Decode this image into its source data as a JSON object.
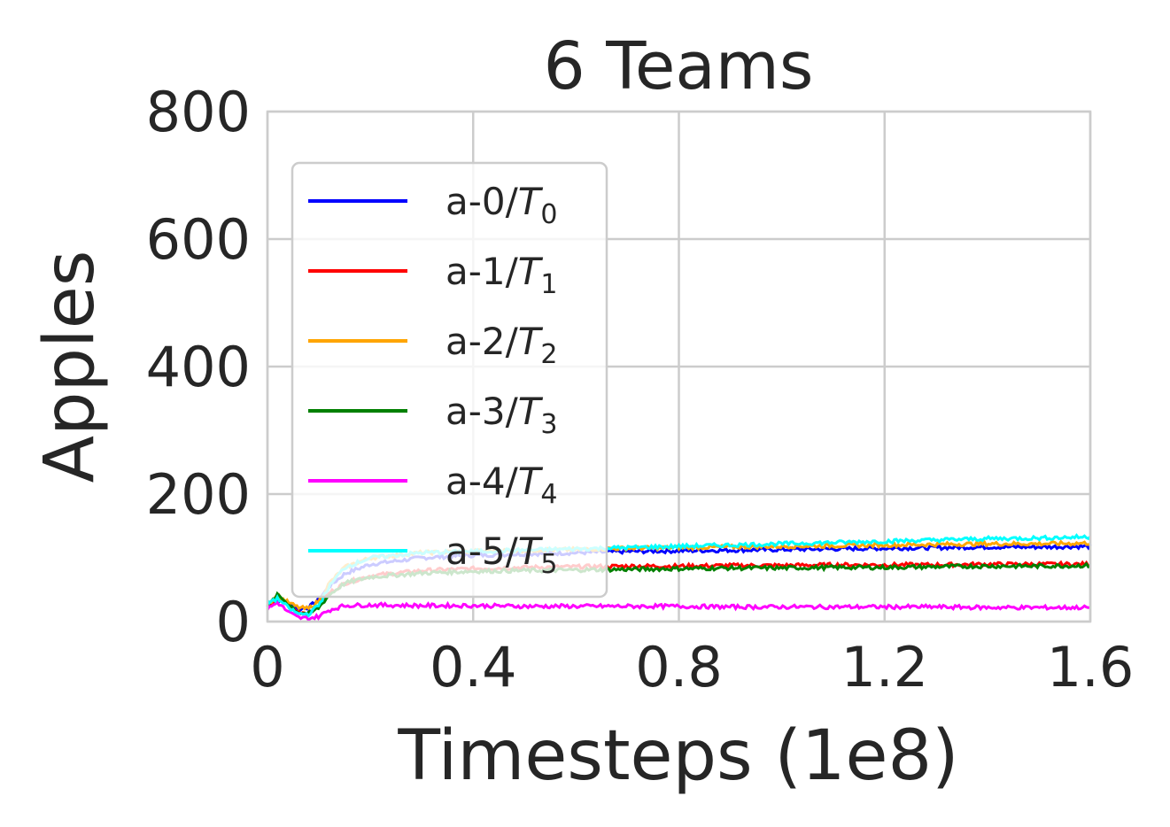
{
  "chart_data": {
    "type": "line",
    "title": "6 Teams",
    "xlabel": "Timesteps (1e8)",
    "ylabel": "Apples",
    "xlim": [
      0,
      1.6
    ],
    "ylim": [
      0,
      800
    ],
    "xticks": [
      {
        "value": 0,
        "label": "0"
      },
      {
        "value": 0.4,
        "label": "0.4"
      },
      {
        "value": 0.8,
        "label": "0.8"
      },
      {
        "value": 1.2,
        "label": "1.2"
      },
      {
        "value": 1.6,
        "label": "1.6"
      }
    ],
    "yticks": [
      {
        "value": 0,
        "label": "0"
      },
      {
        "value": 200,
        "label": "200"
      },
      {
        "value": 400,
        "label": "400"
      },
      {
        "value": 600,
        "label": "600"
      },
      {
        "value": 800,
        "label": "800"
      }
    ],
    "grid": true,
    "legend_position": "upper-left",
    "x": [
      0,
      0.02,
      0.04,
      0.06,
      0.08,
      0.1,
      0.12,
      0.15,
      0.2,
      0.3,
      0.4,
      0.5,
      0.6,
      0.7,
      0.8,
      0.9,
      1.0,
      1.1,
      1.2,
      1.3,
      1.4,
      1.5,
      1.6
    ],
    "series": [
      {
        "label": "a-0/",
        "sub": "0",
        "color": "#0000ff",
        "values": [
          25,
          35,
          28,
          20,
          22,
          35,
          55,
          75,
          90,
          100,
          104,
          106,
          108,
          110,
          111,
          112,
          113,
          114,
          115,
          116,
          117,
          117,
          118
        ]
      },
      {
        "label": "a-1/",
        "sub": "1",
        "color": "#ff0000",
        "values": [
          22,
          38,
          25,
          15,
          14,
          25,
          45,
          60,
          72,
          80,
          83,
          85,
          86,
          87,
          87,
          88,
          88,
          89,
          89,
          89,
          90,
          90,
          90
        ]
      },
      {
        "label": "a-2/",
        "sub": "2",
        "color": "#ffa500",
        "values": [
          28,
          40,
          30,
          22,
          20,
          32,
          60,
          85,
          100,
          108,
          110,
          112,
          113,
          115,
          116,
          117,
          118,
          119,
          120,
          121,
          122,
          122,
          123
        ]
      },
      {
        "label": "a-3/",
        "sub": "3",
        "color": "#008000",
        "values": [
          24,
          42,
          28,
          14,
          12,
          22,
          42,
          60,
          70,
          76,
          79,
          80,
          81,
          82,
          83,
          84,
          84,
          85,
          85,
          86,
          87,
          87,
          88
        ]
      },
      {
        "label": "a-4/",
        "sub": "4",
        "color": "#ff00ff",
        "values": [
          20,
          30,
          15,
          6,
          5,
          8,
          18,
          25,
          26,
          25,
          25,
          24,
          24,
          24,
          24,
          23,
          23,
          23,
          23,
          23,
          22,
          22,
          22
        ]
      },
      {
        "label": "a-5/",
        "sub": "5",
        "color": "#00ffff",
        "values": [
          30,
          36,
          22,
          12,
          12,
          26,
          55,
          85,
          100,
          108,
          110,
          112,
          114,
          116,
          118,
          120,
          122,
          124,
          126,
          128,
          130,
          131,
          133
        ]
      }
    ],
    "legend_symbol": "T"
  }
}
